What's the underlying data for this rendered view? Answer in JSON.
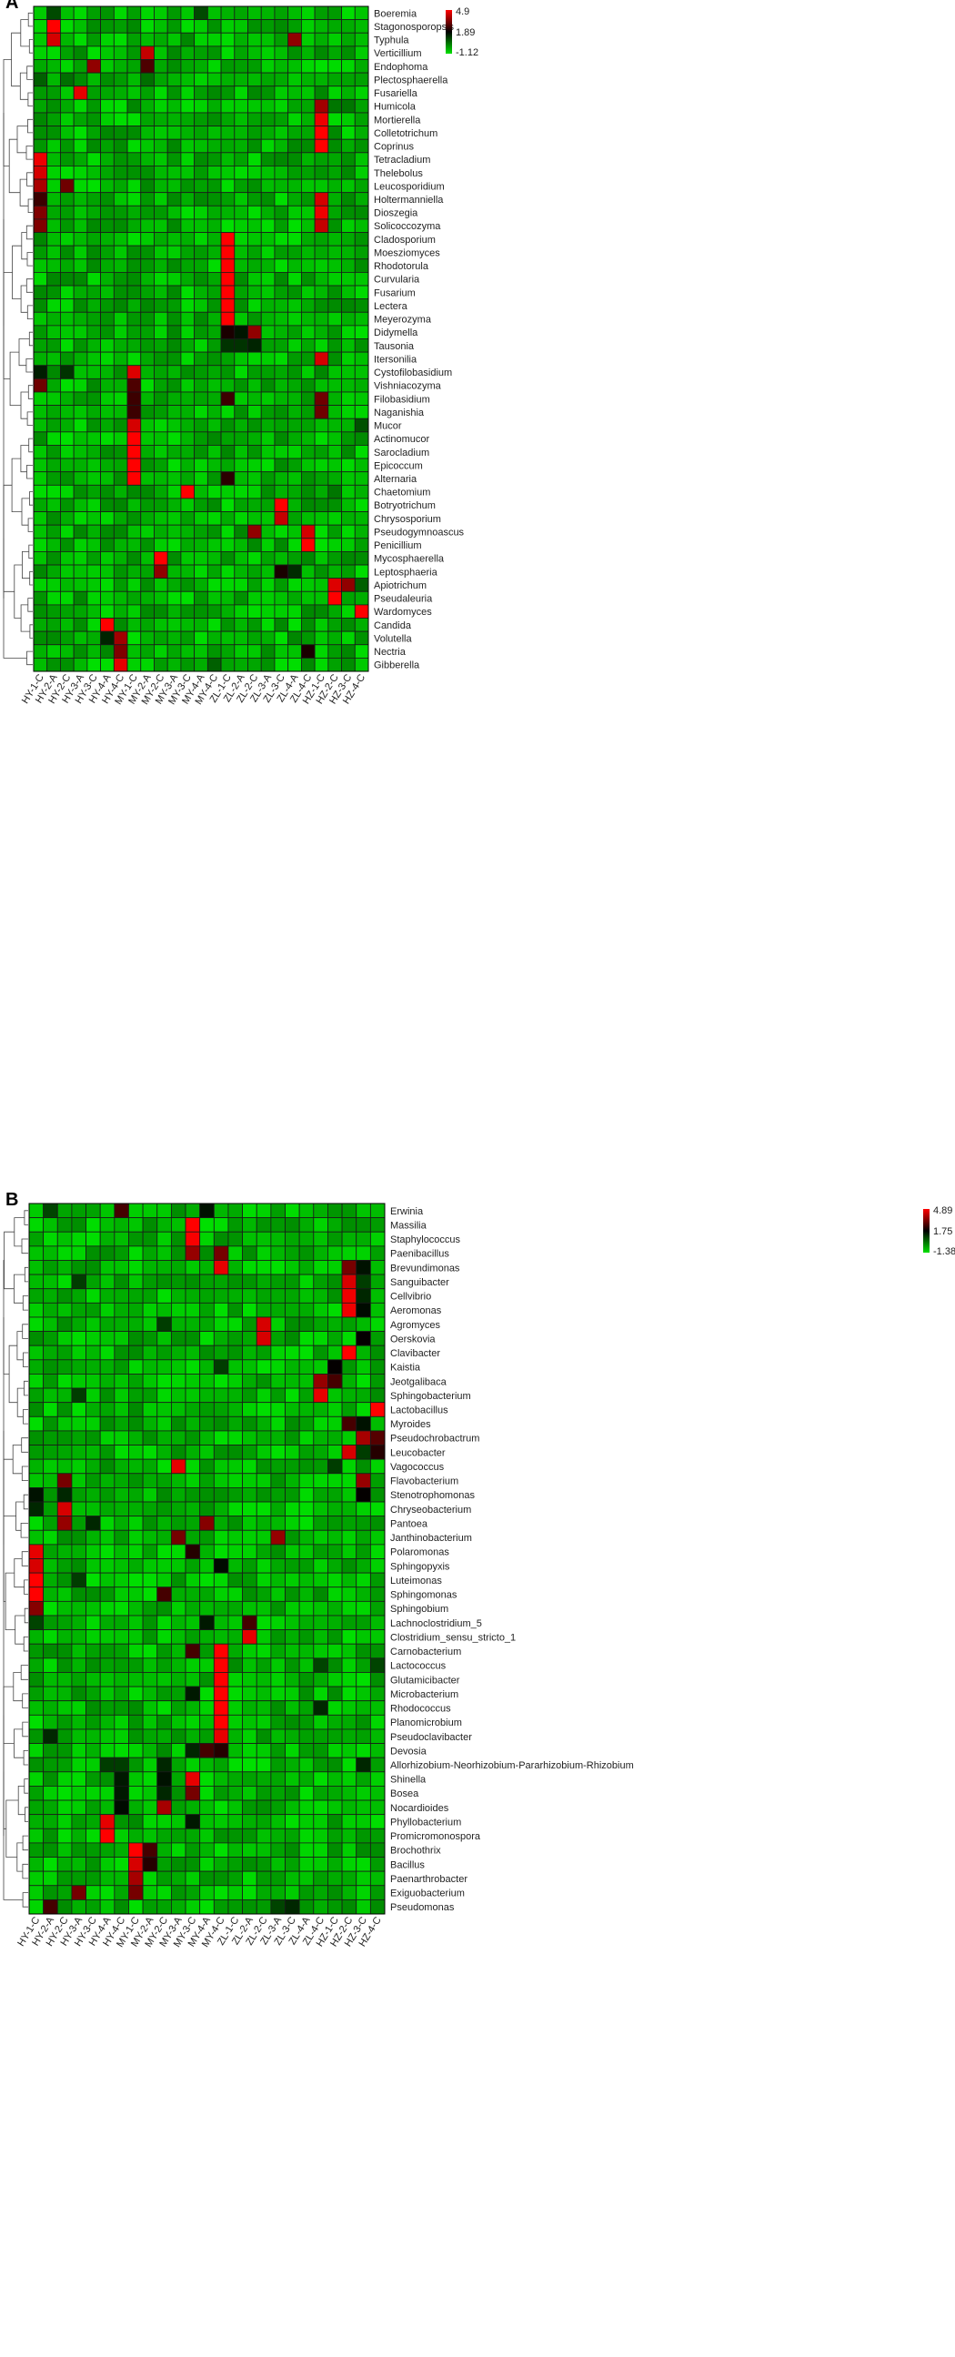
{
  "chart_data": [
    {
      "type": "heatmap",
      "panel_label": "A",
      "legend": {
        "max": "4.9",
        "mid": "1.89",
        "min": "-1.12"
      },
      "color_scale": {
        "low": "#00e000",
        "mid": "#000000",
        "high": "#ff0000"
      },
      "grid": true,
      "dendrogram": "left",
      "legend_placement": "top-right",
      "columns": [
        "HY-1-C",
        "HY-2-A",
        "HY-2-C",
        "HY-3-A",
        "HY-3-C",
        "HY-4-A",
        "HY-4-C",
        "MY-1-C",
        "MY-2-A",
        "MY-2-C",
        "MY-3-A",
        "MY-3-C",
        "MY-4-A",
        "MY-4-C",
        "ZL-1-C",
        "ZL-2-A",
        "ZL-2-C",
        "ZL-3-A",
        "ZL-3-C",
        "ZL-4-A",
        "ZL-4-C",
        "HZ-1-C",
        "HZ-2-C",
        "HZ-3-C",
        "HZ-4-C"
      ],
      "rows": [
        "Boeremia",
        "Stagonosporopsis",
        "Typhula",
        "Verticillium",
        "Endophoma",
        "Plectosphaerella",
        "Fusariella",
        "Humicola",
        "Mortierella",
        "Colletotrichum",
        "Coprinus",
        "Tetracladium",
        "Thelebolus",
        "Leucosporidium",
        "Holtermanniella",
        "Dioszegia",
        "Solicoccozyma",
        "Cladosporium",
        "Moesziomyces",
        "Rhodotorula",
        "Curvularia",
        "Fusarium",
        "Lectera",
        "Meyerozyma",
        "Didymella",
        "Tausonia",
        "Itersonilia",
        "Cystofilobasidium",
        "Vishniacozyma",
        "Filobasidium",
        "Naganishia",
        "Mucor",
        "Actinomucor",
        "Sarocladium",
        "Epicoccum",
        "Alternaria",
        "Chaetomium",
        "Botryotrichum",
        "Chrysosporium",
        "Pseudogymnoascus",
        "Penicillium",
        "Mycosphaerella",
        "Leptosphaeria",
        "Apiotrichum",
        "Pseudaleuria",
        "Wardomyces",
        "Candida",
        "Volutella",
        "Nectria",
        "Gibberella"
      ],
      "hotspots": [
        [
          "Boeremia",
          1,
          0.9
        ],
        [
          "Boeremia",
          12,
          0.9
        ],
        [
          "Stagonosporopsis",
          1,
          4.9
        ],
        [
          "Typhula",
          1,
          4.4
        ],
        [
          "Typhula",
          19,
          3.6
        ],
        [
          "Verticillium",
          8,
          4.2
        ],
        [
          "Endophoma",
          4,
          3.6
        ],
        [
          "Endophoma",
          8,
          2.8
        ],
        [
          "Plectosphaerella",
          0,
          0.6
        ],
        [
          "Plectosphaerella",
          2,
          0.4
        ],
        [
          "Plectosphaerella",
          8,
          0.4
        ],
        [
          "Fusariella",
          3,
          4.6
        ],
        [
          "Humicola",
          21,
          3.8
        ],
        [
          "Humicola",
          22,
          0.3
        ],
        [
          "Humicola",
          23,
          0.3
        ],
        [
          "Mortierella",
          21,
          4.7
        ],
        [
          "Colletotrichum",
          21,
          4.9
        ],
        [
          "Coprinus",
          21,
          4.9
        ],
        [
          "Tetracladium",
          0,
          4.7
        ],
        [
          "Thelebolus",
          0,
          4.4
        ],
        [
          "Leucosporidium",
          0,
          3.9
        ],
        [
          "Leucosporidium",
          2,
          3.2
        ],
        [
          "Holtermanniella",
          0,
          2.6
        ],
        [
          "Holtermanniella",
          21,
          4.4
        ],
        [
          "Dioszegia",
          0,
          3.4
        ],
        [
          "Dioszegia",
          21,
          4.7
        ],
        [
          "Solicoccozyma",
          0,
          3.4
        ],
        [
          "Solicoccozyma",
          21,
          4.2
        ],
        [
          "Cladosporium",
          14,
          4.9
        ],
        [
          "Moesziomyces",
          14,
          4.9
        ],
        [
          "Rhodotorula",
          14,
          4.9
        ],
        [
          "Curvularia",
          14,
          4.9
        ],
        [
          "Fusarium",
          14,
          4.9
        ],
        [
          "Lectera",
          14,
          4.9
        ],
        [
          "Meyerozyma",
          14,
          4.9
        ],
        [
          "Didymella",
          14,
          2.2
        ],
        [
          "Didymella",
          15,
          1.6
        ],
        [
          "Didymella",
          16,
          3.6
        ],
        [
          "Tausonia",
          14,
          1.2
        ],
        [
          "Tausonia",
          15,
          1.2
        ],
        [
          "Tausonia",
          16,
          1.4
        ],
        [
          "Itersonilia",
          21,
          4.4
        ],
        [
          "Cystofilobasidium",
          0,
          1.5
        ],
        [
          "Cystofilobasidium",
          2,
          1.2
        ],
        [
          "Cystofilobasidium",
          7,
          4.5
        ],
        [
          "Vishniacozyma",
          0,
          3.2
        ],
        [
          "Vishniacozyma",
          7,
          2.8
        ],
        [
          "Filobasidium",
          7,
          2.6
        ],
        [
          "Filobasidium",
          14,
          2.6
        ],
        [
          "Filobasidium",
          21,
          3.2
        ],
        [
          "Naganishia",
          7,
          2.6
        ],
        [
          "Naganishia",
          21,
          3.2
        ],
        [
          "Mucor",
          7,
          4.4
        ],
        [
          "Mucor",
          24,
          0.8
        ],
        [
          "Actinomucor",
          7,
          4.9
        ],
        [
          "Sarocladium",
          7,
          4.9
        ],
        [
          "Epicoccum",
          7,
          4.9
        ],
        [
          "Alternaria",
          7,
          4.9
        ],
        [
          "Alternaria",
          14,
          2.4
        ],
        [
          "Chaetomium",
          11,
          4.9
        ],
        [
          "Chaetomium",
          22,
          0.3
        ],
        [
          "Botryotrichum",
          18,
          4.9
        ],
        [
          "Chrysosporium",
          18,
          4.2
        ],
        [
          "Pseudogymnoascus",
          16,
          3.6
        ],
        [
          "Pseudogymnoascus",
          20,
          4.4
        ],
        [
          "Penicillium",
          20,
          4.9
        ],
        [
          "Mycosphaerella",
          9,
          4.9
        ],
        [
          "Leptosphaeria",
          9,
          3.6
        ],
        [
          "Leptosphaeria",
          18,
          2.2
        ],
        [
          "Leptosphaeria",
          19,
          1.3
        ],
        [
          "Apiotrichum",
          22,
          4.5
        ],
        [
          "Apiotrichum",
          23,
          3.6
        ],
        [
          "Apiotrichum",
          24,
          0.6
        ],
        [
          "Pseudaleuria",
          22,
          4.9
        ],
        [
          "Wardomyces",
          24,
          4.9
        ],
        [
          "Candida",
          5,
          4.9
        ],
        [
          "Volutella",
          6,
          3.8
        ],
        [
          "Volutella",
          5,
          1.4
        ],
        [
          "Nectria",
          6,
          3.4
        ],
        [
          "Nectria",
          20,
          2.2
        ],
        [
          "Gibberella",
          6,
          4.6
        ],
        [
          "Gibberella",
          13,
          0.6
        ]
      ]
    },
    {
      "type": "heatmap",
      "panel_label": "B",
      "legend": {
        "max": "4.89",
        "mid": "1.75",
        "min": "-1.38"
      },
      "color_scale": {
        "low": "#00e000",
        "mid": "#000000",
        "high": "#ff0000"
      },
      "grid": true,
      "dendrogram": "left",
      "legend_placement": "top-right",
      "columns": [
        "HY-1-C",
        "HY-2-A",
        "HY-2-C",
        "HY-3-A",
        "HY-3-C",
        "HY-4-A",
        "HY-4-C",
        "MY-1-C",
        "MY-2-A",
        "MY-2-C",
        "MY-3-A",
        "MY-3-C",
        "MY-4-A",
        "MY-4-C",
        "ZL-1-C",
        "ZL-2-A",
        "ZL-2-C",
        "ZL-3-A",
        "ZL-3-C",
        "ZL-4-A",
        "ZL-4-C",
        "HZ-1-C",
        "HZ-2-C",
        "HZ-3-C",
        "HZ-4-C"
      ],
      "rows": [
        "Erwinia",
        "Massilia",
        "Staphylococcus",
        "Paenibacillus",
        "Brevundimonas",
        "Sanguibacter",
        "Cellvibrio",
        "Aeromonas",
        "Agromyces",
        "Oerskovia",
        "Clavibacter",
        "Kaistia",
        "Jeotgalibaca",
        "Sphingobacterium",
        "Lactobacillus",
        "Myroides",
        "Pseudochrobactrum",
        "Leucobacter",
        "Vagococcus",
        "Flavobacterium",
        "Stenotrophomonas",
        "Chryseobacterium",
        "Pantoea",
        "Janthinobacterium",
        "Polaromonas",
        "Sphingopyxis",
        "Luteimonas",
        "Sphingomonas",
        "Sphingobium",
        "Lachnoclostridium_5",
        "Clostridium_sensu_stricto_1",
        "Carnobacterium",
        "Lactococcus",
        "Glutamicibacter",
        "Microbacterium",
        "Rhodococcus",
        "Planomicrobium",
        "Pseudoclavibacter",
        "Devosia",
        "Allorhizobium-Neorhizobium-Pararhizobium-Rhizobium",
        "Shinella",
        "Bosea",
        "Nocardioides",
        "Phyllobacterium",
        "Promicromonospora",
        "Brochothrix",
        "Bacillus",
        "Paenarthrobacter",
        "Exiguobacterium",
        "Pseudomonas"
      ],
      "hotspots": [
        [
          "Erwinia",
          1,
          0.8
        ],
        [
          "Erwinia",
          6,
          2.6
        ],
        [
          "Erwinia",
          12,
          1.5
        ],
        [
          "Massilia",
          11,
          4.9
        ],
        [
          "Staphylococcus",
          11,
          4.8
        ],
        [
          "Paenibacillus",
          11,
          3.6
        ],
        [
          "Paenibacillus",
          13,
          3.2
        ],
        [
          "Brevundimonas",
          13,
          4.6
        ],
        [
          "Brevundimonas",
          22,
          3.2
        ],
        [
          "Brevundimonas",
          23,
          1.5
        ],
        [
          "Sanguibacter",
          3,
          0.9
        ],
        [
          "Sanguibacter",
          22,
          4.4
        ],
        [
          "Sanguibacter",
          23,
          0.9
        ],
        [
          "Cellvibrio",
          22,
          4.7
        ],
        [
          "Cellvibrio",
          23,
          1.2
        ],
        [
          "Aeromonas",
          22,
          4.7
        ],
        [
          "Aeromonas",
          23,
          1.6
        ],
        [
          "Agromyces",
          16,
          4.4
        ],
        [
          "Agromyces",
          9,
          0.9
        ],
        [
          "Oerskovia",
          16,
          4.4
        ],
        [
          "Oerskovia",
          23,
          1.8
        ],
        [
          "Clavibacter",
          22,
          4.9
        ],
        [
          "Kaistia",
          21,
          1.8
        ],
        [
          "Kaistia",
          13,
          0.9
        ],
        [
          "Jeotgalibaca",
          20,
          3.6
        ],
        [
          "Jeotgalibaca",
          21,
          2.6
        ],
        [
          "Sphingobacterium",
          20,
          4.6
        ],
        [
          "Sphingobacterium",
          3,
          0.9
        ],
        [
          "Lactobacillus",
          24,
          4.9
        ],
        [
          "Myroides",
          22,
          2.6
        ],
        [
          "Myroides",
          23,
          1.5
        ],
        [
          "Pseudochrobactrum",
          23,
          3.8
        ],
        [
          "Pseudochrobactrum",
          24,
          2.8
        ],
        [
          "Leucobacter",
          22,
          4.4
        ],
        [
          "Leucobacter",
          23,
          0.9
        ],
        [
          "Leucobacter",
          24,
          2.2
        ],
        [
          "Vagococcus",
          10,
          4.6
        ],
        [
          "Vagococcus",
          21,
          0.9
        ],
        [
          "Flavobacterium",
          2,
          3.2
        ],
        [
          "Flavobacterium",
          23,
          3.6
        ],
        [
          "Stenotrophomonas",
          0,
          1.5
        ],
        [
          "Stenotrophomonas",
          2,
          1.2
        ],
        [
          "Stenotrophomonas",
          23,
          1.8
        ],
        [
          "Chryseobacterium",
          2,
          4.4
        ],
        [
          "Chryseobacterium",
          0,
          1.2
        ],
        [
          "Pantoea",
          2,
          3.6
        ],
        [
          "Pantoea",
          4,
          1.2
        ],
        [
          "Pantoea",
          12,
          3.4
        ],
        [
          "Janthinobacterium",
          10,
          3.2
        ],
        [
          "Janthinobacterium",
          17,
          3.6
        ],
        [
          "Polaromonas",
          0,
          4.6
        ],
        [
          "Polaromonas",
          11,
          2.2
        ],
        [
          "Sphingopyxis",
          0,
          4.4
        ],
        [
          "Sphingopyxis",
          13,
          1.6
        ],
        [
          "Luteimonas",
          0,
          4.9
        ],
        [
          "Luteimonas",
          3,
          0.9
        ],
        [
          "Sphingomonas",
          0,
          4.9
        ],
        [
          "Sphingomonas",
          9,
          2.6
        ],
        [
          "Sphingobium",
          0,
          3.4
        ],
        [
          "Lachnoclostridium_5",
          0,
          0.8
        ],
        [
          "Lachnoclostridium_5",
          12,
          1.4
        ],
        [
          "Lachnoclostridium_5",
          15,
          2.6
        ],
        [
          "Clostridium_sensu_stricto_1",
          15,
          4.6
        ],
        [
          "Carnobacterium",
          11,
          2.6
        ],
        [
          "Carnobacterium",
          13,
          4.9
        ],
        [
          "Lactococcus",
          13,
          4.9
        ],
        [
          "Lactococcus",
          20,
          0.8
        ],
        [
          "Lactococcus",
          24,
          0.8
        ],
        [
          "Glutamicibacter",
          13,
          4.9
        ],
        [
          "Microbacterium",
          13,
          4.9
        ],
        [
          "Microbacterium",
          11,
          1.4
        ],
        [
          "Rhodococcus",
          13,
          4.9
        ],
        [
          "Rhodococcus",
          20,
          1.2
        ],
        [
          "Planomicrobium",
          13,
          4.9
        ],
        [
          "Pseudoclavibacter",
          13,
          4.6
        ],
        [
          "Pseudoclavibacter",
          1,
          1.2
        ],
        [
          "Devosia",
          12,
          2.6
        ],
        [
          "Devosia",
          13,
          2.2
        ],
        [
          "Devosia",
          11,
          1.2
        ],
        [
          "Allorhizobium-Neorhizobium-Pararhizobium-Rhizobium",
          5,
          0.9
        ],
        [
          "Allorhizobium-Neorhizobium-Pararhizobium-Rhizobium",
          6,
          0.9
        ],
        [
          "Allorhizobium-Neorhizobium-Pararhizobium-Rhizobium",
          9,
          1.2
        ],
        [
          "Allorhizobium-Neorhizobium-Pararhizobium-Rhizobium",
          23,
          1.2
        ],
        [
          "Shinella",
          9,
          1.5
        ],
        [
          "Shinella",
          11,
          4.6
        ],
        [
          "Shinella",
          6,
          1.4
        ],
        [
          "Bosea",
          6,
          1.4
        ],
        [
          "Bosea",
          9,
          1.2
        ],
        [
          "Bosea",
          11,
          3.2
        ],
        [
          "Nocardioides",
          6,
          1.6
        ],
        [
          "Nocardioides",
          9,
          3.8
        ],
        [
          "Phyllobacterium",
          5,
          4.6
        ],
        [
          "Phyllobacterium",
          11,
          1.4
        ],
        [
          "Promicromonospora",
          5,
          4.9
        ],
        [
          "Brochothrix",
          7,
          4.9
        ],
        [
          "Brochothrix",
          8,
          2.6
        ],
        [
          "Bacillus",
          7,
          4.4
        ],
        [
          "Bacillus",
          8,
          2.2
        ],
        [
          "Paenarthrobacter",
          7,
          3.8
        ],
        [
          "Exiguobacterium",
          3,
          3.2
        ],
        [
          "Exiguobacterium",
          7,
          3.2
        ],
        [
          "Pseudomonas",
          17,
          0.8
        ],
        [
          "Pseudomonas",
          18,
          1.2
        ],
        [
          "Pseudomonas",
          1,
          2.6
        ]
      ]
    }
  ]
}
